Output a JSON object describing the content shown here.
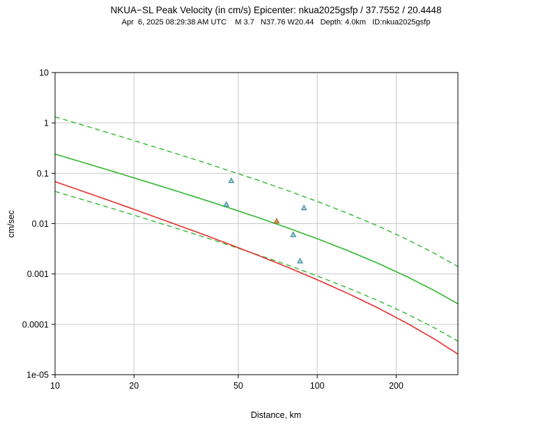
{
  "header": {
    "title": "NKUA−SL Peak Velocity (in cm/s) Epicenter: nkua2025gsfp / 37.7552 / 20.4448",
    "subtitle": "Apr  6, 2025 08:29:38 AM UTC    M 3.7   N37.76 W20.44   Depth: 4.0km   ID:nkua2025gsfp"
  },
  "chart_data": {
    "type": "line",
    "title": "NKUA−SL Peak Velocity (in cm/s) Epicenter: nkua2025gsfp / 37.7552 / 20.4448",
    "xlabel": "Distance, km",
    "ylabel": "cm/sec",
    "x_scale": "log",
    "y_scale": "log",
    "xlim": [
      10,
      344
    ],
    "ylim": [
      1e-05,
      10
    ],
    "grid": "on",
    "legend": "none",
    "colors": {
      "frame": "#000000",
      "grid": "#c9c9c9",
      "green": "#2eb82e",
      "red": "#e53030"
    },
    "x_ticks": [
      {
        "v": 10,
        "label": "10"
      },
      {
        "v": 20,
        "label": "20"
      },
      {
        "v": 50,
        "label": "50"
      },
      {
        "v": 100,
        "label": "100"
      },
      {
        "v": 200,
        "label": "200"
      }
    ],
    "y_ticks": [
      {
        "v": 10,
        "label": "10"
      },
      {
        "v": 1,
        "label": "1"
      },
      {
        "v": 0.1,
        "label": "0.1"
      },
      {
        "v": 0.01,
        "label": "0.01"
      },
      {
        "v": 0.001,
        "label": "0.001"
      },
      {
        "v": 0.0001,
        "label": "0.0001"
      },
      {
        "v": 1e-05,
        "label": "1e-05"
      }
    ],
    "grid_x": [
      20,
      50,
      100,
      200
    ],
    "grid_y": [
      1,
      0.1,
      0.01,
      0.001,
      0.0001
    ],
    "series": [
      {
        "name": "gmpe-median",
        "color": "#2eb82e",
        "style": "solid",
        "width": 1.6,
        "x": [
          10,
          13,
          17,
          22,
          28,
          36,
          47,
          60,
          78,
          100,
          130,
          170,
          220,
          280,
          344
        ],
        "y": [
          0.24,
          0.16,
          0.105,
          0.0695,
          0.0471,
          0.0312,
          0.0199,
          0.013,
          0.00806,
          0.00501,
          0.00295,
          0.00164,
          0.000884,
          0.000467,
          0.000255
        ]
      },
      {
        "name": "gmpe-plus-sigma",
        "color": "#2eb82e",
        "style": "dashed",
        "width": 1.4,
        "x": [
          10,
          13,
          17,
          22,
          28,
          36,
          47,
          60,
          78,
          100,
          130,
          170,
          220,
          280,
          344
        ],
        "y": [
          1.32,
          0.88,
          0.578,
          0.382,
          0.259,
          0.172,
          0.109,
          0.0715,
          0.0443,
          0.0276,
          0.0162,
          0.00902,
          0.00486,
          0.00257,
          0.0014
        ]
      },
      {
        "name": "gmpe-minus-sigma",
        "color": "#2eb82e",
        "style": "dashed",
        "width": 1.4,
        "x": [
          10,
          13,
          17,
          22,
          28,
          36,
          47,
          60,
          78,
          100,
          130,
          170,
          220,
          280,
          344
        ],
        "y": [
          0.0436,
          0.0291,
          0.0191,
          0.0126,
          0.00857,
          0.00567,
          0.00361,
          0.00236,
          0.00147,
          0.000911,
          0.000536,
          0.000298,
          0.000161,
          8.49e-05,
          4.64e-05
        ]
      },
      {
        "name": "gmpe-alternate",
        "color": "#e53030",
        "style": "solid",
        "width": 1.6,
        "x": [
          10,
          13,
          17,
          22,
          28,
          36,
          47,
          60,
          78,
          100,
          130,
          170,
          220,
          280,
          344
        ],
        "y": [
          0.0681,
          0.0424,
          0.026,
          0.0161,
          0.0102,
          0.00634,
          0.00376,
          0.0023,
          0.00133,
          0.000767,
          0.000417,
          0.000213,
          0.000105,
          5.09e-05,
          2.56e-05
        ]
      }
    ],
    "marker_styles": {
      "station": {
        "stroke": "#2b7d8e",
        "fill": "#9fd4de"
      },
      "highlight": {
        "stroke": "#b35a1f",
        "fill": "#de9357"
      }
    },
    "points": [
      {
        "x": 47,
        "y": 0.071,
        "style": "station"
      },
      {
        "x": 45,
        "y": 0.024,
        "style": "station"
      },
      {
        "x": 70,
        "y": 0.0112,
        "style": "highlight"
      },
      {
        "x": 81,
        "y": 0.006,
        "style": "station"
      },
      {
        "x": 89,
        "y": 0.0205,
        "style": "station"
      },
      {
        "x": 86,
        "y": 0.0018,
        "style": "station"
      }
    ]
  }
}
